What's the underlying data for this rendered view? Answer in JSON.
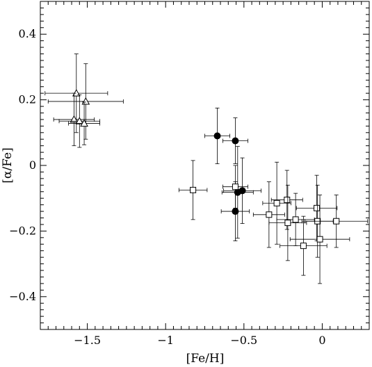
{
  "chart_data": {
    "type": "scatter",
    "title": "",
    "xlabel": "[Fe/H]",
    "ylabel": "[α/Fe]",
    "xlim": [
      -1.8,
      0.3
    ],
    "ylim": [
      -0.5,
      0.5
    ],
    "x_ticks": [
      -1.5,
      -1,
      -0.5,
      0
    ],
    "x_tick_labels": [
      "−1.5",
      "−1",
      "−0.5",
      "0"
    ],
    "y_ticks": [
      -0.4,
      -0.2,
      0,
      0.2,
      0.4
    ],
    "y_tick_labels": [
      "−0.4",
      "−0.2",
      "0",
      "0.2",
      "0.4"
    ],
    "grid": false,
    "legend": "none",
    "series": [
      {
        "marker": "open-triangle",
        "color": "#000000",
        "points": [
          {
            "x": -1.57,
            "y": 0.22,
            "xerr": 0.2,
            "yerr": 0.12
          },
          {
            "x": -1.51,
            "y": 0.195,
            "xerr": 0.24,
            "yerr": 0.115
          },
          {
            "x": -1.585,
            "y": 0.14,
            "xerr": 0.13,
            "yerr": 0.08
          },
          {
            "x": -1.55,
            "y": 0.135,
            "xerr": 0.13,
            "yerr": 0.08
          },
          {
            "x": -1.52,
            "y": 0.128,
            "xerr": 0.1,
            "yerr": 0.065
          }
        ]
      },
      {
        "marker": "filled-circle",
        "color": "#000000",
        "points": [
          {
            "x": -0.67,
            "y": 0.09,
            "xerr": 0.08,
            "yerr": 0.085
          },
          {
            "x": -0.555,
            "y": 0.075,
            "xerr": 0.08,
            "yerr": 0.07
          },
          {
            "x": -0.54,
            "y": -0.082,
            "xerr": 0.1,
            "yerr": 0.14
          },
          {
            "x": -0.51,
            "y": -0.077,
            "xerr": 0.12,
            "yerr": 0.1
          },
          {
            "x": -0.555,
            "y": -0.14,
            "xerr": 0.09,
            "yerr": 0.09
          }
        ]
      },
      {
        "marker": "open-square",
        "color": "#000000",
        "points": [
          {
            "x": -0.825,
            "y": -0.075,
            "xerr": 0.09,
            "yerr": 0.09
          },
          {
            "x": -0.555,
            "y": -0.065,
            "xerr": 0.08,
            "yerr": 0.065
          },
          {
            "x": -0.34,
            "y": -0.15,
            "xerr": 0.1,
            "yerr": 0.1
          },
          {
            "x": -0.29,
            "y": -0.115,
            "xerr": 0.09,
            "yerr": 0.125
          },
          {
            "x": -0.225,
            "y": -0.105,
            "xerr": 0.1,
            "yerr": 0.09
          },
          {
            "x": -0.22,
            "y": -0.175,
            "xerr": 0.12,
            "yerr": 0.115
          },
          {
            "x": -0.17,
            "y": -0.165,
            "xerr": 0.12,
            "yerr": 0.08
          },
          {
            "x": -0.12,
            "y": -0.245,
            "xerr": 0.15,
            "yerr": 0.09
          },
          {
            "x": -0.035,
            "y": -0.13,
            "xerr": 0.13,
            "yerr": 0.1
          },
          {
            "x": -0.03,
            "y": -0.17,
            "xerr": 0.1,
            "yerr": 0.11
          },
          {
            "x": -0.015,
            "y": -0.225,
            "xerr": 0.19,
            "yerr": 0.135
          },
          {
            "x": 0.09,
            "y": -0.17,
            "xerr": 0.2,
            "yerr": 0.08
          }
        ]
      }
    ]
  }
}
